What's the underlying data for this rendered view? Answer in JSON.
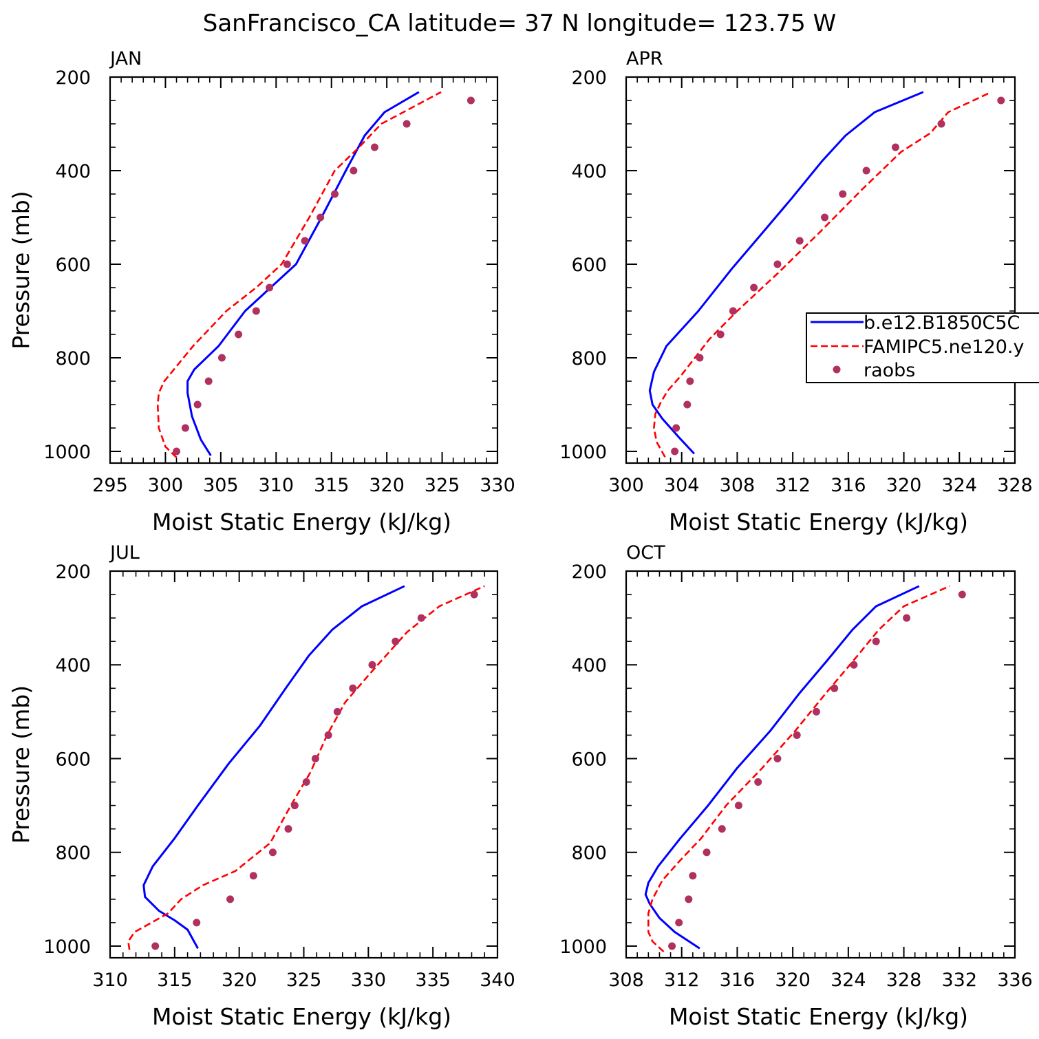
{
  "title": "SanFrancisco_CA  latitude= 37 N longitude= 123.75 W",
  "legend": {
    "placement": "right-middle of APR panel",
    "entries": [
      {
        "label": "b.e12.B1850C5C",
        "style": "solid",
        "color": "#0000ff"
      },
      {
        "label": "FAMIPC5.ne120.y",
        "style": "dashed",
        "color": "#ff0000"
      },
      {
        "label": "raobs",
        "style": "marker",
        "color": "#b03060"
      }
    ]
  },
  "colors": {
    "model_solid": "#0000ff",
    "model_dashed": "#ff0000",
    "raobs": "#b03060",
    "axes": "#000000"
  },
  "chart_data": [
    {
      "type": "line",
      "panel": "JAN",
      "xlabel": "Moist Static Energy (kJ/kg)",
      "ylabel": "Pressure (mb)",
      "xlim": [
        295,
        330
      ],
      "xticks": [
        295,
        300,
        305,
        310,
        315,
        320,
        325,
        330
      ],
      "ylim": [
        200,
        1025
      ],
      "yticks": [
        200,
        400,
        600,
        800,
        1000
      ],
      "y_reversed": true,
      "series": [
        {
          "name": "b.e12.B1850C5C",
          "style": "solid",
          "x": [
            304.1,
            303.2,
            302.4,
            302.0,
            302.0,
            302.6,
            304.8,
            307.2,
            309.5,
            311.8,
            314.1,
            316.3,
            318.0,
            319.8,
            322.9
          ],
          "y": [
            1009,
            975,
            925,
            875,
            850,
            825,
            775,
            700,
            650,
            600,
            500,
            400,
            325,
            275,
            232
          ]
        },
        {
          "name": "FAMIPC5.ne120.y",
          "style": "dashed",
          "x": [
            301.0,
            300.0,
            299.4,
            299.3,
            299.4,
            299.9,
            302.5,
            305.5,
            308.2,
            310.5,
            313.0,
            315.3,
            317.5,
            319.5,
            321.5,
            324.9
          ],
          "y": [
            1013,
            990,
            950,
            900,
            875,
            850,
            775,
            700,
            650,
            600,
            500,
            400,
            350,
            300,
            275,
            232
          ]
        },
        {
          "name": "raobs",
          "style": "marker",
          "x": [
            301.0,
            301.8,
            302.9,
            303.9,
            305.1,
            306.6,
            308.2,
            309.4,
            311.0,
            312.6,
            314.0,
            315.3,
            317.0,
            318.9,
            321.8,
            327.6
          ],
          "y": [
            1000,
            950,
            900,
            850,
            800,
            750,
            700,
            650,
            600,
            550,
            500,
            450,
            400,
            350,
            300,
            250
          ]
        }
      ]
    },
    {
      "type": "line",
      "panel": "APR",
      "xlabel": "Moist Static Energy (kJ/kg)",
      "ylabel": "",
      "xlim": [
        300,
        328
      ],
      "xticks": [
        300,
        304,
        308,
        312,
        316,
        320,
        324,
        328
      ],
      "ylim": [
        200,
        1025
      ],
      "yticks": [
        200,
        400,
        600,
        800,
        1000
      ],
      "y_reversed": true,
      "series": [
        {
          "name": "b.e12.B1850C5C",
          "style": "solid",
          "x": [
            304.9,
            303.8,
            302.6,
            301.9,
            301.7,
            302.0,
            302.9,
            305.2,
            307.6,
            309.9,
            311.9,
            314.1,
            315.8,
            317.9,
            321.4
          ],
          "y": [
            1005,
            970,
            930,
            900,
            870,
            830,
            775,
            700,
            610,
            530,
            460,
            380,
            325,
            275,
            232
          ]
        },
        {
          "name": "FAMIPC5.ne120.y",
          "style": "dashed",
          "x": [
            302.8,
            302.2,
            302.0,
            302.1,
            302.5,
            303.0,
            303.9,
            306.0,
            308.0,
            310.9,
            314.0,
            317.0,
            319.8,
            321.9,
            323.2,
            326.3
          ],
          "y": [
            1012,
            980,
            950,
            920,
            895,
            870,
            840,
            760,
            700,
            620,
            530,
            440,
            360,
            320,
            275,
            232
          ]
        },
        {
          "name": "raobs",
          "style": "marker",
          "x": [
            303.5,
            303.6,
            304.4,
            304.6,
            305.3,
            306.8,
            307.7,
            309.2,
            310.9,
            312.5,
            314.3,
            315.6,
            317.3,
            319.4,
            322.7,
            327.0
          ],
          "y": [
            1000,
            950,
            900,
            850,
            800,
            750,
            700,
            650,
            600,
            550,
            500,
            450,
            400,
            350,
            300,
            250
          ]
        }
      ]
    },
    {
      "type": "line",
      "panel": "JUL",
      "xlabel": "Moist Static Energy (kJ/kg)",
      "ylabel": "Pressure (mb)",
      "xlim": [
        310,
        340
      ],
      "xticks": [
        310,
        315,
        320,
        325,
        330,
        335,
        340
      ],
      "ylim": [
        200,
        1025
      ],
      "yticks": [
        200,
        400,
        600,
        800,
        1000
      ],
      "y_reversed": true,
      "series": [
        {
          "name": "b.e12.B1850C5C",
          "style": "solid",
          "x": [
            316.8,
            316.0,
            315.0,
            313.8,
            312.7,
            312.6,
            313.3,
            315.0,
            316.8,
            319.2,
            321.6,
            323.6,
            325.4,
            327.2,
            329.5,
            332.8
          ],
          "y": [
            1005,
            965,
            945,
            925,
            895,
            870,
            830,
            770,
            700,
            610,
            530,
            450,
            380,
            325,
            275,
            232
          ]
        },
        {
          "name": "FAMIPC5.ne120.y",
          "style": "dashed",
          "x": [
            311.5,
            311.4,
            311.9,
            313.2,
            314.5,
            315.5,
            317.2,
            319.7,
            322.4,
            324.0,
            325.5,
            326.8,
            328.2,
            330.4,
            333.0,
            335.5,
            339.0
          ],
          "y": [
            1008,
            990,
            970,
            950,
            930,
            900,
            870,
            840,
            780,
            700,
            630,
            550,
            480,
            410,
            330,
            275,
            232
          ]
        },
        {
          "name": "raobs",
          "style": "marker",
          "x": [
            313.5,
            316.7,
            319.3,
            321.1,
            322.6,
            323.8,
            324.3,
            325.2,
            325.9,
            326.9,
            327.6,
            328.8,
            330.3,
            332.1,
            334.1,
            338.2
          ],
          "y": [
            1000,
            950,
            900,
            850,
            800,
            750,
            700,
            650,
            600,
            550,
            500,
            450,
            400,
            350,
            300,
            250
          ]
        }
      ]
    },
    {
      "type": "line",
      "panel": "OCT",
      "xlabel": "Moist Static Energy (kJ/kg)",
      "ylabel": "",
      "xlim": [
        308,
        336
      ],
      "xticks": [
        308,
        312,
        316,
        320,
        324,
        328,
        332,
        336
      ],
      "ylim": [
        200,
        1025
      ],
      "yticks": [
        200,
        400,
        600,
        800,
        1000
      ],
      "y_reversed": true,
      "series": [
        {
          "name": "b.e12.B1850C5C",
          "style": "solid",
          "x": [
            313.3,
            311.5,
            310.4,
            309.7,
            309.4,
            309.6,
            310.3,
            311.9,
            313.9,
            316.0,
            318.4,
            320.5,
            322.5,
            324.3,
            326.0,
            329.1
          ],
          "y": [
            1005,
            970,
            940,
            910,
            890,
            865,
            830,
            770,
            700,
            620,
            540,
            460,
            390,
            325,
            275,
            232
          ]
        },
        {
          "name": "FAMIPC5.ne120.y",
          "style": "dashed",
          "x": [
            310.7,
            309.9,
            309.6,
            309.6,
            309.9,
            310.6,
            311.8,
            313.4,
            315.2,
            317.8,
            320.2,
            322.4,
            324.4,
            326.2,
            328.0,
            331.3
          ],
          "y": [
            1012,
            990,
            970,
            930,
            900,
            860,
            820,
            770,
            700,
            620,
            540,
            460,
            390,
            325,
            275,
            232
          ]
        },
        {
          "name": "raobs",
          "style": "marker",
          "x": [
            311.3,
            311.8,
            312.5,
            312.8,
            313.8,
            314.9,
            316.1,
            317.5,
            318.9,
            320.3,
            321.7,
            323.0,
            324.4,
            326.0,
            328.2,
            332.2
          ],
          "y": [
            1000,
            950,
            900,
            850,
            800,
            750,
            700,
            650,
            600,
            550,
            500,
            450,
            400,
            350,
            300,
            250
          ]
        }
      ]
    }
  ]
}
